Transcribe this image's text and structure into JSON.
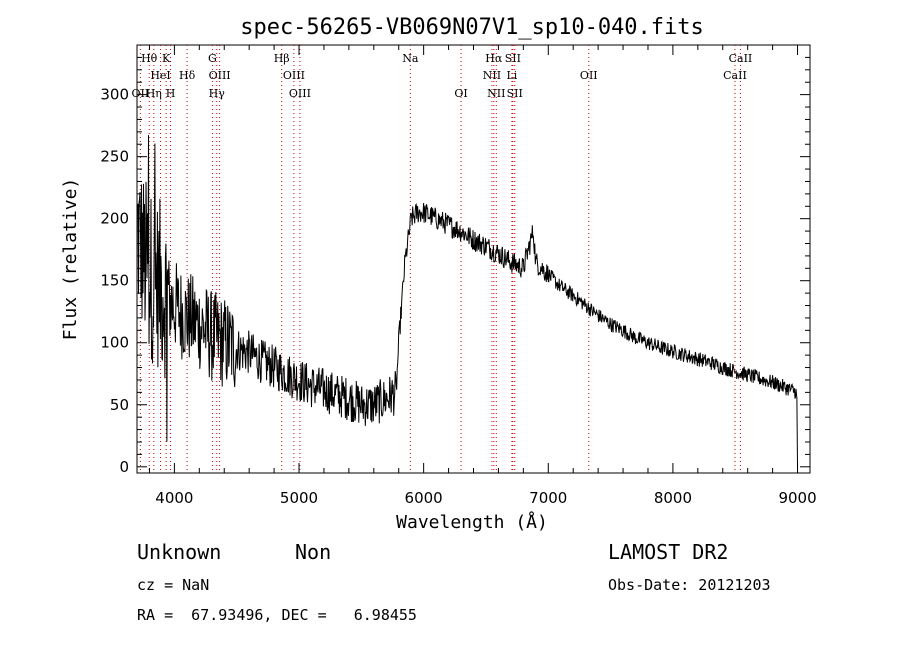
{
  "chart_data": {
    "type": "line",
    "title": "spec-56265-VB069N07V1_sp10-040.fits",
    "xlabel": "Wavelength (Å)",
    "ylabel": "Flux (relative)",
    "xlim": [
      3700,
      9100
    ],
    "ylim": [
      -5,
      340
    ],
    "xticks": [
      4000,
      5000,
      6000,
      7000,
      8000,
      9000
    ],
    "yticks": [
      0,
      50,
      100,
      150,
      200,
      250,
      300
    ],
    "grid": false,
    "series": [
      {
        "values_x": [
          3700,
          3750,
          3800,
          3850,
          3900,
          3950,
          4000,
          4100,
          4200,
          4300,
          4400,
          4500,
          4600,
          4700,
          4800,
          4900,
          5000,
          5100,
          5200,
          5300,
          5400,
          5500,
          5600,
          5700,
          5780,
          5800,
          5850,
          5900,
          5950,
          6000,
          6100,
          6200,
          6300,
          6400,
          6500,
          6600,
          6700,
          6800,
          6880,
          6900,
          7000,
          7100,
          7200,
          7300,
          7400,
          7500,
          7600,
          7700,
          7800,
          7900,
          8000,
          8100,
          8200,
          8300,
          8400,
          8500,
          8600,
          8700,
          8800,
          8900,
          8950,
          9000
        ],
        "values_y": [
          190,
          170,
          155,
          150,
          145,
          135,
          130,
          120,
          115,
          105,
          100,
          95,
          92,
          85,
          80,
          75,
          70,
          65,
          62,
          58,
          55,
          50,
          50,
          55,
          60,
          100,
          165,
          200,
          205,
          205,
          200,
          195,
          190,
          183,
          178,
          172,
          165,
          160,
          190,
          165,
          155,
          145,
          138,
          130,
          122,
          115,
          110,
          104,
          100,
          96,
          93,
          90,
          87,
          84,
          80,
          77,
          74,
          71,
          68,
          64,
          62,
          60
        ]
      }
    ],
    "spectral_lines": [
      {
        "label": "Hθ",
        "x": 3798,
        "row": 0
      },
      {
        "label": "K",
        "x": 3934,
        "row": 0
      },
      {
        "label": "G",
        "x": 4305,
        "row": 0
      },
      {
        "label": "Hβ",
        "x": 4861,
        "row": 0
      },
      {
        "label": "Na",
        "x": 5893,
        "row": 0
      },
      {
        "label": "Hα",
        "x": 6563,
        "row": 0
      },
      {
        "label": "SII",
        "x": 6716,
        "row": 0
      },
      {
        "label": "CaII",
        "x": 8542,
        "row": 0
      },
      {
        "label": "HeI",
        "x": 3889,
        "row": 1
      },
      {
        "label": "Hδ",
        "x": 4102,
        "row": 1
      },
      {
        "label": "OIII",
        "x": 4363,
        "row": 1
      },
      {
        "label": "OIII",
        "x": 4959,
        "row": 1
      },
      {
        "label": "NII",
        "x": 6548,
        "row": 1
      },
      {
        "label": "Li",
        "x": 6708,
        "row": 1
      },
      {
        "label": "OII",
        "x": 7325,
        "row": 1
      },
      {
        "label": "CaII",
        "x": 8498,
        "row": 1
      },
      {
        "label": "OII",
        "x": 3727,
        "row": 2
      },
      {
        "label": "Hη",
        "x": 3835,
        "row": 2
      },
      {
        "label": "H",
        "x": 3969,
        "row": 2
      },
      {
        "label": "Hγ",
        "x": 4340,
        "row": 2
      },
      {
        "label": "OIII",
        "x": 5007,
        "row": 2
      },
      {
        "label": "OI",
        "x": 6300,
        "row": 2
      },
      {
        "label": "NII",
        "x": 6583,
        "row": 2
      },
      {
        "label": "SII",
        "x": 6731,
        "row": 2
      }
    ],
    "dotted_lines_x": [
      3727,
      3798,
      3835,
      3889,
      3934,
      3969,
      4102,
      4305,
      4340,
      4363,
      4861,
      4959,
      5007,
      5893,
      6300,
      6548,
      6563,
      6583,
      6708,
      6716,
      6731,
      7325,
      8498,
      8542
    ]
  },
  "footer": {
    "class_label": "Unknown",
    "subclass_label": "Non",
    "survey": "LAMOST DR2",
    "cz": "cz = NaN",
    "obs_date": "Obs-Date: 20121203",
    "coords": "RA =  67.93496, DEC =   6.98455"
  }
}
